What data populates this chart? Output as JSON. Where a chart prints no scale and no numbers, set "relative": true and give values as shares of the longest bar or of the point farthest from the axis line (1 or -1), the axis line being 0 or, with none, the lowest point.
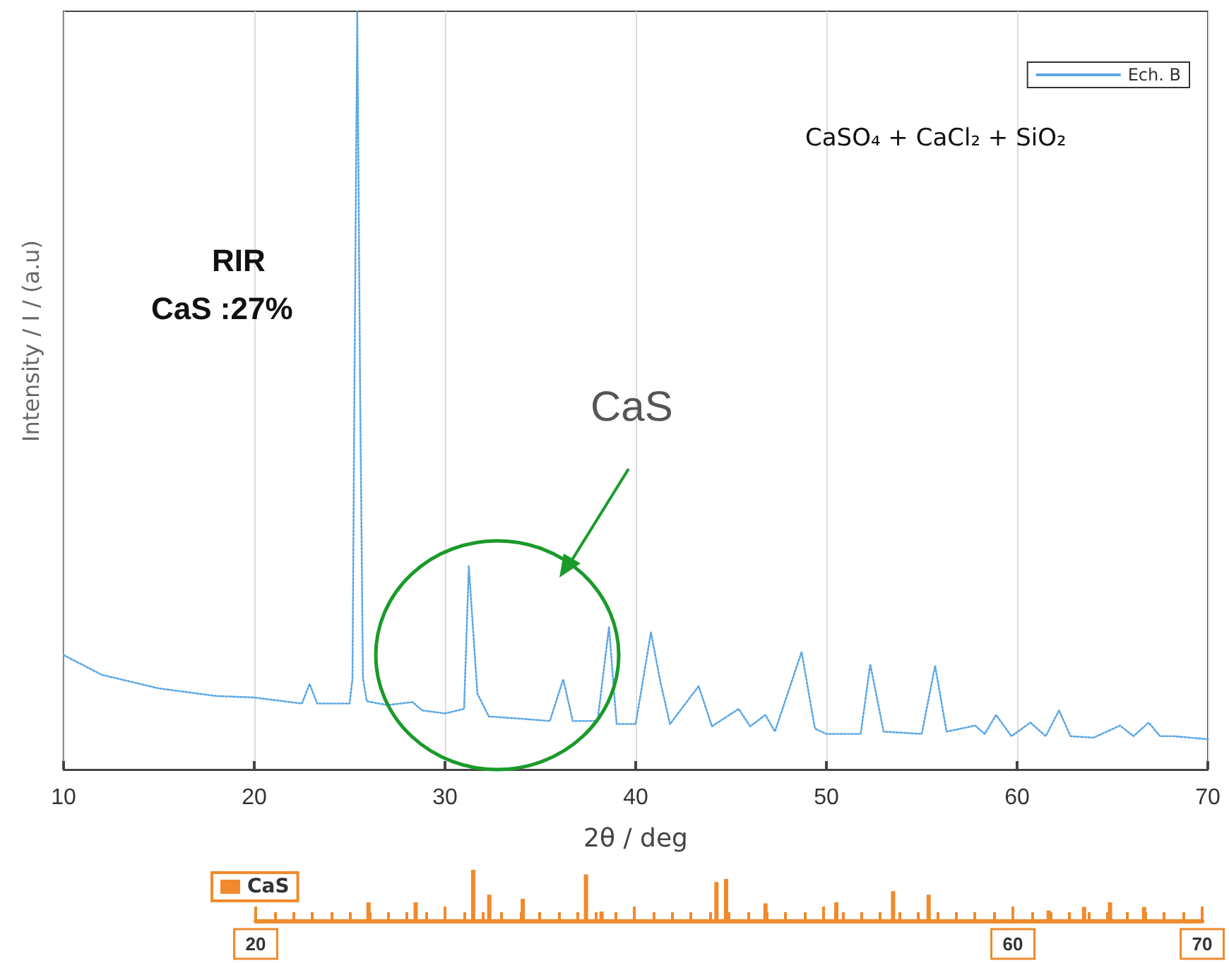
{
  "chart_data": [
    {
      "type": "line",
      "xlabel": "2θ / deg",
      "ylabel": "Intensity / I / (a.u)",
      "relative": true,
      "xlim": [
        10,
        70
      ],
      "xticks": [
        10,
        20,
        30,
        40,
        50,
        60,
        70
      ],
      "grid": "x",
      "legend": "top right",
      "line_style": "dotted",
      "marker": "none",
      "tick_labels": "x",
      "annotations": [
        "RIR",
        "CaS :27%",
        "CaS",
        "CaSO₄ + CaCl₂ + SiO₂"
      ],
      "series": [
        {
          "name": "Ech. B",
          "color": "#5aa7e6",
          "x": [
            10,
            12,
            15,
            18,
            20,
            22.5,
            22.9,
            23.3,
            25,
            25.15,
            25.25,
            25.4,
            25.55,
            25.7,
            25.9,
            27,
            28.3,
            28.8,
            30,
            31,
            31.25,
            31.7,
            32.3,
            34,
            35.5,
            36.2,
            36.7,
            38,
            38.6,
            39,
            40,
            40.8,
            41.3,
            41.8,
            43.3,
            44,
            45.4,
            46,
            46.8,
            47.3,
            48.7,
            49.4,
            50,
            51.8,
            52.3,
            53,
            55,
            55.7,
            56.3,
            57.8,
            58.3,
            58.9,
            59.7,
            60.7,
            61.5,
            62.2,
            62.8,
            64,
            65.4,
            66.1,
            66.9,
            67.5,
            68.2,
            70
          ],
          "values": [
            0.151,
            0.125,
            0.107,
            0.097,
            0.095,
            0.087,
            0.113,
            0.087,
            0.087,
            0.12,
            0.5,
            1.0,
            0.5,
            0.12,
            0.09,
            0.085,
            0.089,
            0.078,
            0.074,
            0.08,
            0.268,
            0.1,
            0.07,
            0.067,
            0.064,
            0.119,
            0.064,
            0.064,
            0.188,
            0.06,
            0.06,
            0.181,
            0.115,
            0.06,
            0.11,
            0.057,
            0.08,
            0.057,
            0.072,
            0.05,
            0.155,
            0.054,
            0.047,
            0.047,
            0.139,
            0.05,
            0.047,
            0.137,
            0.05,
            0.058,
            0.047,
            0.072,
            0.044,
            0.062,
            0.044,
            0.078,
            0.044,
            0.042,
            0.058,
            0.044,
            0.062,
            0.044,
            0.044,
            0.04
          ]
        }
      ]
    },
    {
      "type": "bar",
      "relative": true,
      "xlim": [
        20,
        70
      ],
      "xticks": [
        20,
        {
          "value": 30,
          "label": null
        },
        {
          "value": 40,
          "label": null
        },
        {
          "value": 50,
          "label": null
        },
        60,
        70
      ],
      "legend": "left",
      "tick_labels": "x",
      "series": [
        {
          "name": "CaS",
          "color": "#f08a2c",
          "x": [
            25.96,
            28.45,
            31.49,
            32.34,
            34.11,
            37.45,
            38.27,
            44.34,
            44.85,
            46.93,
            50.67,
            53.67,
            55.55,
            61.89,
            63.76,
            65.13,
            66.93
          ],
          "values": [
            0.36,
            0.36,
            1,
            0.51,
            0.43,
            0.91,
            0.18,
            0.76,
            0.82,
            0.34,
            0.36,
            0.58,
            0.51,
            0.2,
            0.27,
            0.36,
            0.27
          ]
        }
      ]
    }
  ]
}
